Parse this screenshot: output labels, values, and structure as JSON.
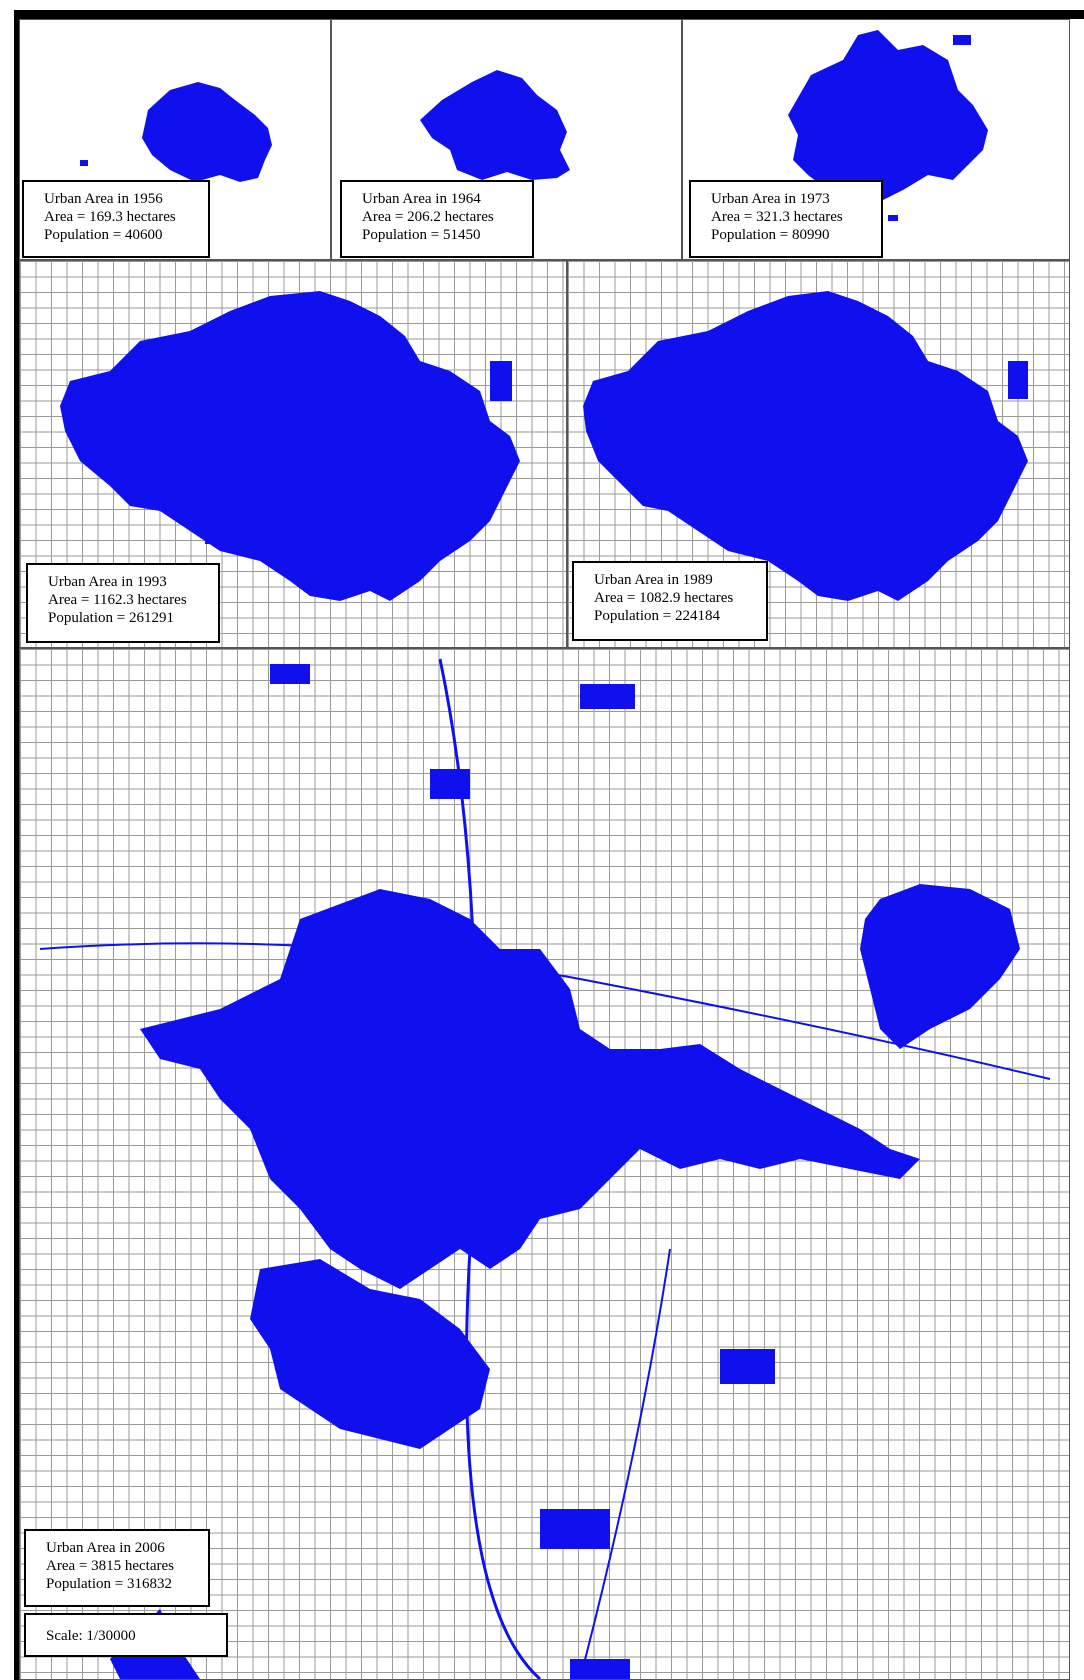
{
  "panels": [
    {
      "key": "y1956",
      "title": "Urban Area in 1956",
      "area": "Area = 169.3 hectares",
      "population": "Population = 40600"
    },
    {
      "key": "y1964",
      "title": "Urban Area in 1964",
      "area": "Area = 206.2 hectares",
      "population": "Population = 51450"
    },
    {
      "key": "y1973",
      "title": "Urban Area in 1973",
      "area": "Area = 321.3 hectares",
      "population": "Population = 80990"
    },
    {
      "key": "y1993",
      "title": "Urban Area in 1993",
      "area": "Area = 1162.3 hectares",
      "population": "Population = 261291"
    },
    {
      "key": "y1989",
      "title": "Urban Area in 1989",
      "area": "Area = 1082.9 hectares",
      "population": "Population = 224184"
    },
    {
      "key": "y2006",
      "title": "Urban Area in 2006",
      "area": "Area = 3815 hectares",
      "population": "Population = 316832"
    }
  ],
  "scale": "Scale: 1/30000",
  "colors": {
    "urban_fill": "#1010ee",
    "grid_line": "#9a9a9a",
    "frame": "#000000"
  }
}
